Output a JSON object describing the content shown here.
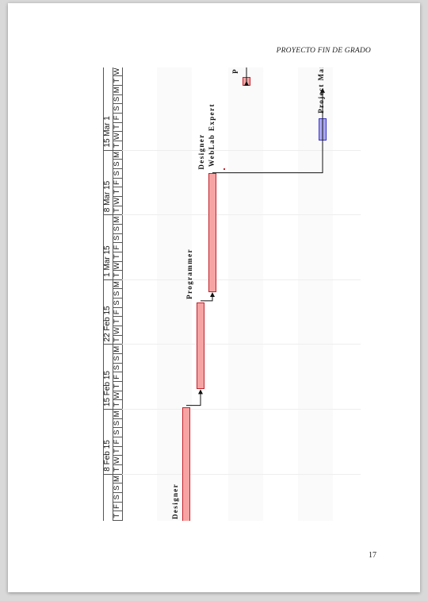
{
  "page": {
    "header": "PROYECTO FIN DE GRADO",
    "page_number": "17"
  },
  "gantt": {
    "weeks": [
      "8 Feb 15",
      "15 Feb 15",
      "22 Feb 15",
      "1 Mar 15",
      "8 Mar 15",
      "15 Mar 1"
    ],
    "days_visible": [
      "T",
      "F",
      "S",
      "S",
      "M",
      "T",
      "W",
      "T",
      "F",
      "S",
      "S",
      "M",
      "T",
      "W",
      "T",
      "F",
      "S",
      "S",
      "M",
      "T",
      "W",
      "T",
      "F",
      "S",
      "S",
      "M",
      "T",
      "W",
      "T",
      "F",
      "S",
      "S",
      "M",
      "T",
      "W",
      "T",
      "F",
      "S",
      "S",
      "M",
      "T",
      "W",
      "T",
      "F",
      "S",
      "S",
      "M",
      "T",
      "W"
    ],
    "tasks": [
      {
        "label": "Designer",
        "type": "task"
      },
      {
        "label": "Programmer",
        "type": "task"
      },
      {
        "label": "Designer",
        "type": "task"
      },
      {
        "label": "WebLab Expert",
        "type": "task"
      },
      {
        "label": "Project Ma",
        "type": "task"
      },
      {
        "label": "P",
        "type": "task"
      },
      {
        "label": "Project Mana",
        "type": "milestone"
      }
    ],
    "colors": {
      "task_fill": "#f8a3a3",
      "task_border": "#c0232b",
      "milestone_fill": "#a8a6f5",
      "milestone_border": "#3a35c0"
    }
  }
}
